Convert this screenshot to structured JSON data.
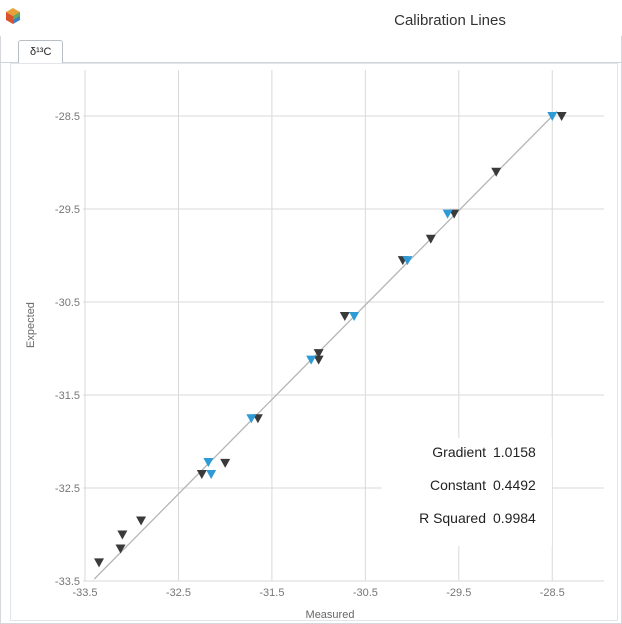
{
  "window": {
    "title": "Calibration Lines"
  },
  "tabs": [
    {
      "label": "δ¹³C",
      "active": true
    }
  ],
  "colors": {
    "dark_marker": "#3a3a3a",
    "blue_marker": "#2e9bd6",
    "fit_line": "#b5b5b5",
    "grid": "#d9d9d9",
    "tick_text": "#777777"
  },
  "stats": {
    "gradient_label": "Gradient",
    "gradient_value": "1.0158",
    "constant_label": "Constant",
    "constant_value": "0.4492",
    "rsq_label": "R Squared",
    "rsq_value": "0.9984"
  },
  "chart_data": {
    "type": "scatter",
    "xlabel": "Measured",
    "ylabel": "Expected",
    "xlim": [
      -33.5,
      -28.0
    ],
    "ylim": [
      -33.5,
      -28.5
    ],
    "xticks": [
      -33.5,
      -32.5,
      -31.5,
      -30.5,
      -29.5,
      -28.5
    ],
    "yticks": [
      -28.5,
      -29.5,
      -30.5,
      -31.5,
      -32.5,
      -33.5
    ],
    "tick_labels_x": [
      "-33.5",
      "-32.5",
      "-31.5",
      "-30.5",
      "-29.5",
      "-28.5"
    ],
    "tick_labels_y": [
      "-28.5",
      "-29.5",
      "-30.5",
      "-31.5",
      "-32.5",
      "-33.5"
    ],
    "grid": true,
    "marker": "down-triangle",
    "fit": {
      "gradient": 1.0158,
      "constant": 0.4492,
      "r_squared": 0.9984
    },
    "series": [
      {
        "marker_color": "#3a3a3a",
        "points": [
          [
            -33.35,
            -33.3
          ],
          [
            -33.12,
            -33.15
          ],
          [
            -33.1,
            -33.0
          ],
          [
            -32.9,
            -32.85
          ],
          [
            -32.25,
            -32.35
          ],
          [
            -32.0,
            -32.23
          ],
          [
            -31.65,
            -31.75
          ],
          [
            -31.0,
            -31.05
          ],
          [
            -31.0,
            -31.12
          ],
          [
            -30.72,
            -30.65
          ],
          [
            -30.1,
            -30.05
          ],
          [
            -29.8,
            -29.82
          ],
          [
            -29.55,
            -29.55
          ],
          [
            -29.1,
            -29.1
          ],
          [
            -28.4,
            -28.5
          ]
        ]
      },
      {
        "marker_color": "#2e9bd6",
        "points": [
          [
            -32.18,
            -32.22
          ],
          [
            -32.15,
            -32.35
          ],
          [
            -31.72,
            -31.75
          ],
          [
            -31.08,
            -31.12
          ],
          [
            -30.62,
            -30.65
          ],
          [
            -30.05,
            -30.05
          ],
          [
            -29.62,
            -29.55
          ],
          [
            -28.5,
            -28.5
          ]
        ]
      }
    ]
  }
}
